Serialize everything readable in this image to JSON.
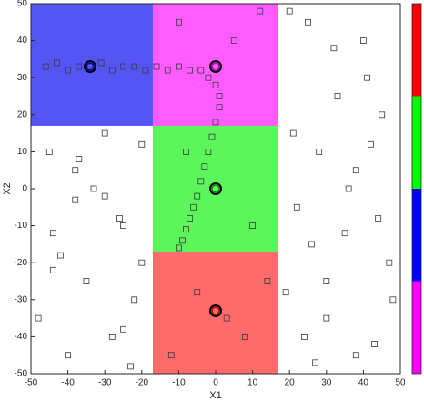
{
  "chart_data": {
    "type": "scatter",
    "xlabel": "X1",
    "ylabel": "X2",
    "xlim": [
      -50,
      50
    ],
    "ylim": [
      -50,
      50
    ],
    "xticks": [
      -50,
      -40,
      -30,
      -20,
      -10,
      0,
      10,
      20,
      30,
      40,
      50
    ],
    "yticks": [
      -50,
      -40,
      -30,
      -20,
      -10,
      0,
      10,
      20,
      30,
      40,
      50
    ],
    "regions": [
      {
        "xlim": [
          -50,
          -17
        ],
        "ylim": [
          17,
          50
        ],
        "color": "#5555f5"
      },
      {
        "xlim": [
          -17,
          17
        ],
        "ylim": [
          17,
          50
        ],
        "color": "#ff5cff"
      },
      {
        "xlim": [
          -17,
          17
        ],
        "ylim": [
          -17,
          17
        ],
        "color": "#5cf55c"
      },
      {
        "xlim": [
          -17,
          17
        ],
        "ylim": [
          -50,
          -17
        ],
        "color": "#ff6a6a"
      }
    ],
    "centers": {
      "x": [
        -34,
        0,
        0,
        0
      ],
      "y": [
        33,
        33,
        0,
        -33
      ],
      "colors": [
        "#0000aa",
        "#aa00aa",
        "#008800",
        "#aa0000"
      ]
    },
    "points": {
      "x": [
        25,
        32,
        41,
        45,
        28,
        38,
        22,
        35,
        47,
        19,
        30,
        43,
        27,
        36,
        21,
        44,
        33,
        24,
        40,
        48,
        -45,
        -38,
        -30,
        -25,
        -42,
        -35,
        -22,
        -48,
        -28,
        -40,
        -33,
        -20,
        -44,
        -26,
        -37,
        -23,
        -10,
        5,
        12,
        -5,
        8,
        -12,
        3,
        14,
        -8,
        10,
        20,
        30,
        42,
        26,
        38,
        -44,
        -30,
        -25,
        -38,
        -20,
        -46,
        -43,
        -40,
        -37,
        -34,
        -31,
        -28,
        -25,
        -22,
        -19,
        -16,
        -13,
        -10,
        -7,
        -4,
        -2,
        0,
        1,
        1,
        0,
        -1,
        -2,
        -3,
        -4,
        -5,
        -6,
        -7,
        -8,
        -9,
        -10
      ],
      "y": [
        45,
        38,
        30,
        20,
        10,
        5,
        -5,
        -12,
        -20,
        -28,
        -35,
        -42,
        -47,
        0,
        15,
        -8,
        25,
        -40,
        40,
        -30,
        10,
        5,
        -2,
        -10,
        -18,
        -25,
        -30,
        -35,
        -40,
        -45,
        0,
        12,
        -22,
        -8,
        8,
        -48,
        45,
        40,
        48,
        -28,
        -40,
        -45,
        -35,
        -25,
        10,
        -10,
        48,
        -25,
        12,
        -15,
        -45,
        -12,
        15,
        -38,
        -3,
        -20,
        33,
        34,
        32,
        33,
        33,
        34,
        32,
        33,
        33,
        32,
        33,
        32,
        33,
        32,
        32,
        30,
        28,
        25,
        22,
        18,
        14,
        10,
        6,
        2,
        -2,
        -5,
        -8,
        -11,
        -14,
        -16
      ]
    },
    "colorbar": {
      "colors": [
        "#ff00ff",
        "#0000ff",
        "#00ff00",
        "#ff0000"
      ]
    }
  }
}
